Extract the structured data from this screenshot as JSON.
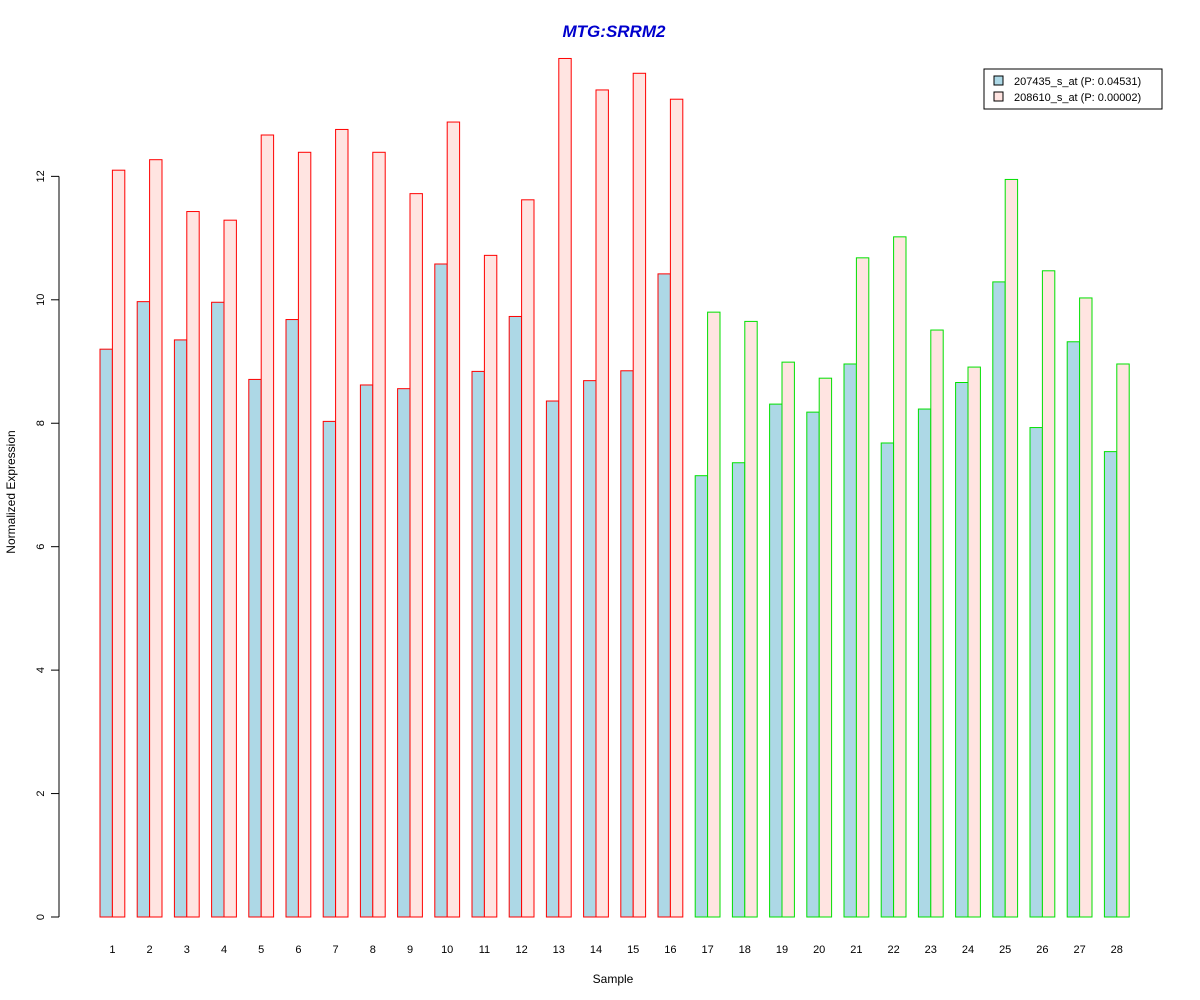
{
  "chart_data": {
    "type": "bar",
    "title": "MTG:SRRM2",
    "xlabel": "Sample",
    "ylabel": "Normalized Expression",
    "categories": [
      "1",
      "2",
      "3",
      "4",
      "5",
      "6",
      "7",
      "8",
      "9",
      "10",
      "11",
      "12",
      "13",
      "14",
      "15",
      "16",
      "17",
      "18",
      "19",
      "20",
      "21",
      "22",
      "23",
      "24",
      "25",
      "26",
      "27",
      "28"
    ],
    "series": [
      {
        "name": "207435_s_at (P: 0.04531)",
        "fill": "#add8e6",
        "values": [
          9.2,
          9.97,
          9.35,
          9.96,
          8.71,
          9.68,
          8.03,
          8.62,
          8.56,
          10.58,
          8.84,
          9.73,
          8.36,
          8.69,
          8.85,
          10.42,
          7.15,
          7.36,
          8.31,
          8.18,
          8.96,
          7.68,
          8.23,
          8.66,
          10.29,
          7.93,
          9.32,
          7.54
        ]
      },
      {
        "name": "208610_s_at (P: 0.00002)",
        "fill": "#ffe4e1",
        "values": [
          12.1,
          12.27,
          11.43,
          11.29,
          12.67,
          12.39,
          12.76,
          12.39,
          11.72,
          12.88,
          10.72,
          11.62,
          13.91,
          13.4,
          13.67,
          13.25,
          9.8,
          9.65,
          8.99,
          8.73,
          10.68,
          11.02,
          9.51,
          8.91,
          11.95,
          10.47,
          10.03,
          8.96
        ]
      }
    ],
    "group_borders": [
      "#ff0000",
      "#ff0000",
      "#ff0000",
      "#ff0000",
      "#ff0000",
      "#ff0000",
      "#ff0000",
      "#ff0000",
      "#ff0000",
      "#ff0000",
      "#ff0000",
      "#ff0000",
      "#ff0000",
      "#ff0000",
      "#ff0000",
      "#ff0000",
      "#00e000",
      "#00e000",
      "#00e000",
      "#00e000",
      "#00e000",
      "#00e000",
      "#00e000",
      "#00e000",
      "#00e000",
      "#00e000",
      "#00e000",
      "#00e000"
    ],
    "ylim": [
      0,
      14
    ],
    "yticks": [
      0,
      2,
      4,
      6,
      8,
      10,
      12
    ],
    "grid": false,
    "legend_position": "top-right",
    "title_color": "#0000cd"
  }
}
